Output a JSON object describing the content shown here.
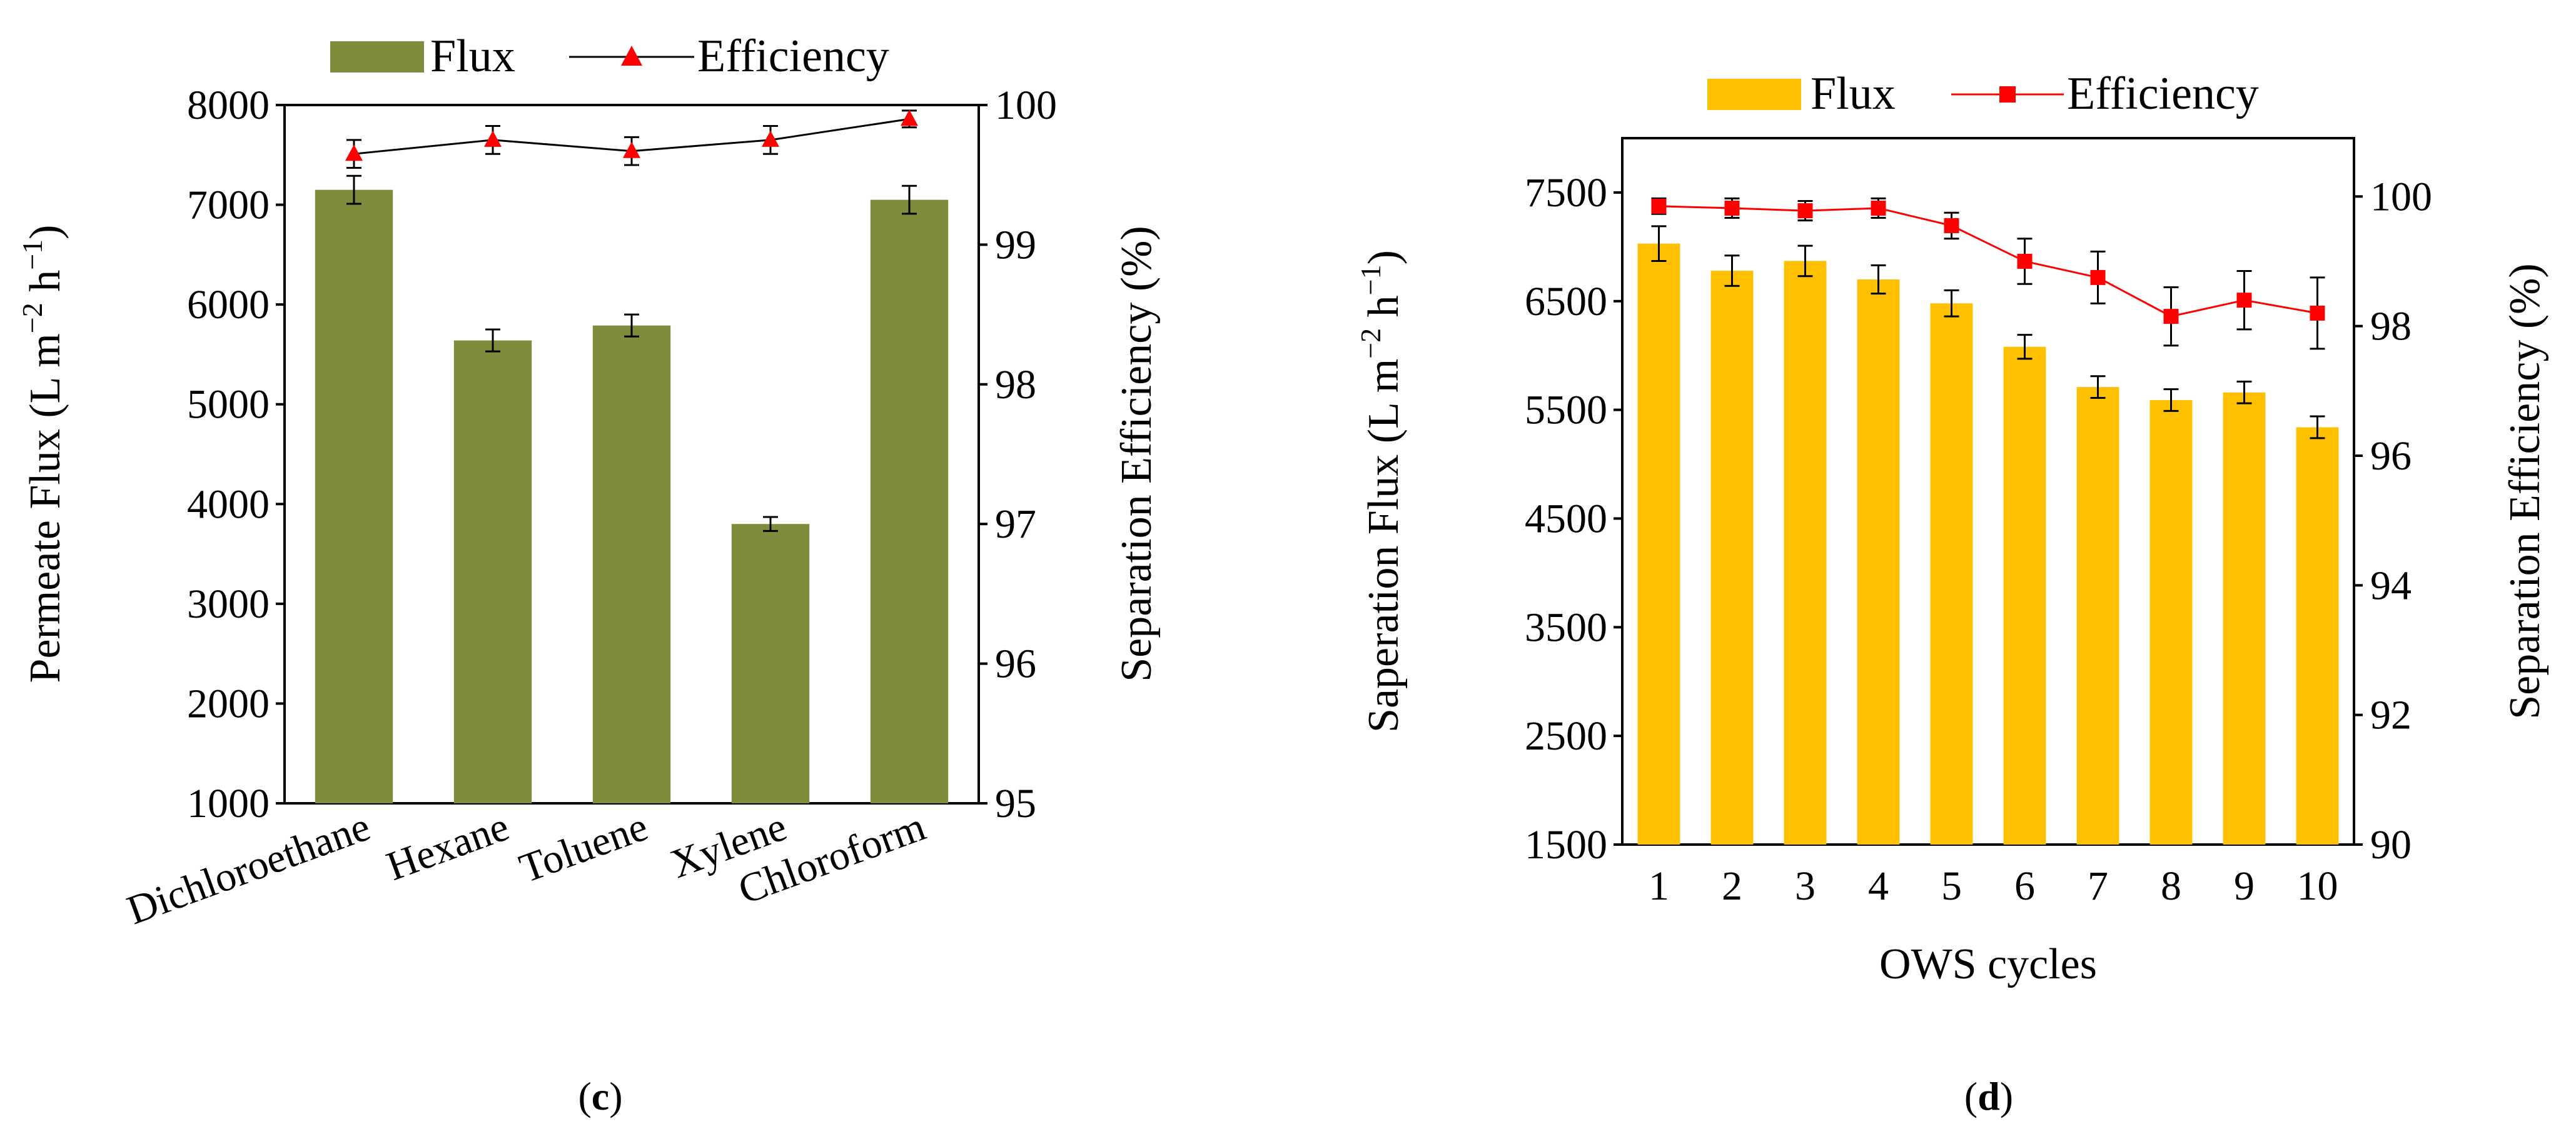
{
  "chart_data": [
    {
      "type": "bar",
      "panel_label": "c",
      "categories": [
        "Dichloroethane",
        "Hexane",
        "Toluene",
        "Xylene",
        "Chloroform"
      ],
      "series": [
        {
          "name": "Flux",
          "kind": "bar",
          "axis": "left",
          "color": "#7f8c3c",
          "values": [
            7150,
            5640,
            5790,
            3800,
            7050
          ],
          "errors": [
            140,
            110,
            110,
            70,
            140
          ]
        },
        {
          "name": "Efficiency",
          "kind": "line",
          "axis": "right",
          "color": "#ff0000",
          "line_color": "#000000",
          "marker": "triangle",
          "values": [
            99.65,
            99.75,
            99.67,
            99.75,
            99.9
          ],
          "errors": [
            0.1,
            0.1,
            0.1,
            0.1,
            0.06
          ]
        }
      ],
      "ylabel": "Permeate Flux (L m⁻² h⁻¹)",
      "ylabel_parts": {
        "main": "Permeate Flux (L m",
        "sup1": "−2",
        "mid": " h",
        "sup2": "−1",
        "end": ")"
      },
      "y2label": "Separation Efficiency (%)",
      "ylim": [
        1000,
        8000
      ],
      "y_ticks": [
        "1000",
        "2000",
        "3000",
        "4000",
        "5000",
        "6000",
        "7000",
        "8000"
      ],
      "y2lim": [
        95,
        100
      ],
      "y2_ticks": [
        "95",
        "96",
        "97",
        "98",
        "99",
        "100"
      ],
      "legend": {
        "flux": "Flux",
        "efficiency": "Efficiency",
        "position": "top"
      },
      "caption": "(c)"
    },
    {
      "type": "bar",
      "panel_label": "d",
      "categories": [
        "1",
        "2",
        "3",
        "4",
        "5",
        "6",
        "7",
        "8",
        "9",
        "10"
      ],
      "series": [
        {
          "name": "Flux",
          "kind": "bar",
          "axis": "left",
          "color": "#ffc000",
          "values": [
            7030,
            6780,
            6870,
            6700,
            6480,
            6080,
            5710,
            5590,
            5660,
            5340
          ],
          "errors": [
            160,
            140,
            140,
            130,
            120,
            110,
            100,
            100,
            100,
            100
          ]
        },
        {
          "name": "Efficiency",
          "kind": "line",
          "axis": "right",
          "color": "#ff0000",
          "line_color": "#ff0000",
          "marker": "square",
          "values": [
            99.85,
            99.82,
            99.78,
            99.82,
            99.55,
            99.0,
            98.75,
            98.15,
            98.4,
            98.2
          ],
          "errors": [
            0.12,
            0.15,
            0.15,
            0.15,
            0.2,
            0.35,
            0.4,
            0.45,
            0.45,
            0.55
          ]
        }
      ],
      "xlabel": "OWS cycles",
      "ylabel": "Saperation Flux (L m⁻² h⁻¹)",
      "ylabel_parts": {
        "main": "Saperation Flux (L m",
        "sup1": "−2",
        "mid": " h",
        "sup2": "−1",
        "end": ")"
      },
      "y2label": "Separation Efficiency (%)",
      "ylim": [
        1500,
        8000
      ],
      "y_ticks": [
        "1500",
        "2500",
        "3500",
        "4500",
        "5500",
        "6500",
        "7500"
      ],
      "y2lim": [
        90,
        100.9
      ],
      "y2_ticks": [
        "90",
        "92",
        "94",
        "96",
        "98",
        "100"
      ],
      "legend": {
        "flux": "Flux",
        "efficiency": "Efficiency",
        "position": "top"
      },
      "caption": "(d)"
    }
  ]
}
